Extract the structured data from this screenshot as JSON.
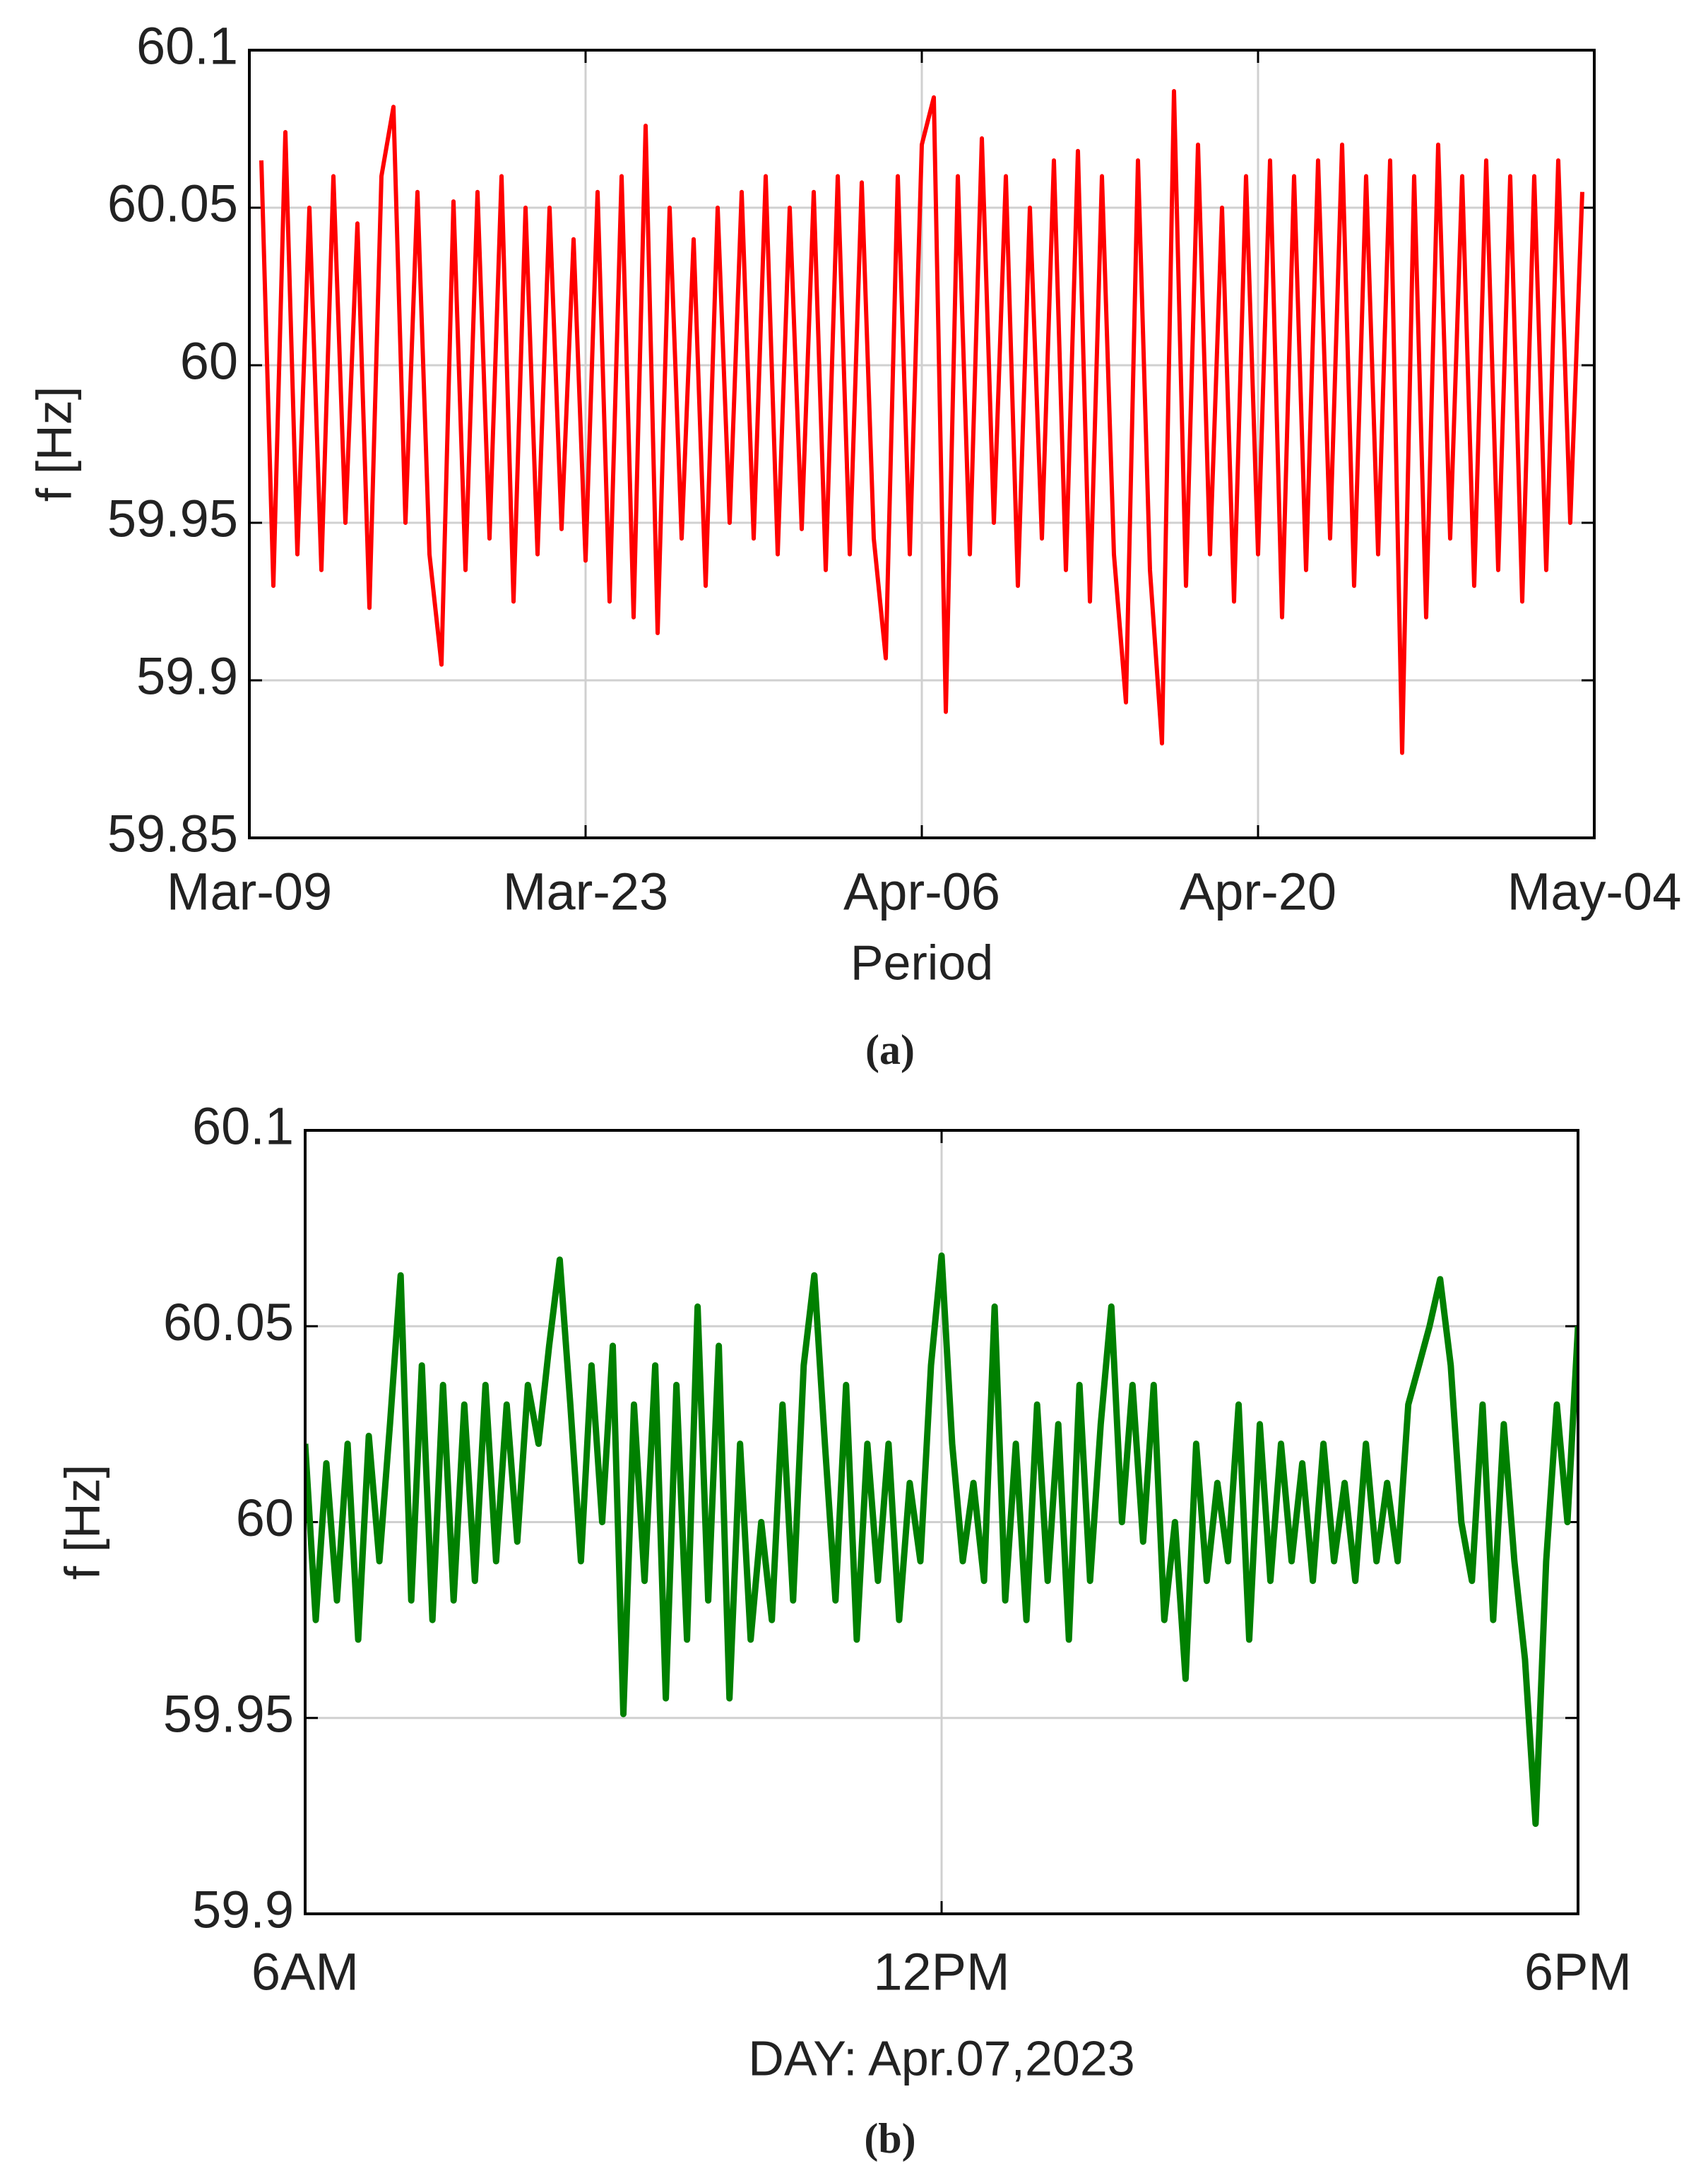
{
  "chart_data": [
    {
      "type": "line",
      "caption": "(a)",
      "ylabel": "f [Hz]",
      "xlabel": "Period",
      "xlim": [
        0,
        56
      ],
      "xticks": [
        {
          "value": 0,
          "label": "Mar-09"
        },
        {
          "value": 14,
          "label": "Mar-23"
        },
        {
          "value": 28,
          "label": "Apr-06"
        },
        {
          "value": 42,
          "label": "Apr-20"
        },
        {
          "value": 56,
          "label": "May-04"
        }
      ],
      "ylim": [
        59.85,
        60.1
      ],
      "yticks": [
        59.85,
        59.9,
        59.95,
        60,
        60.05,
        60.1
      ],
      "grid": true,
      "x": [
        0.5,
        1,
        1.5,
        2,
        2.5,
        3,
        3.5,
        4,
        4.5,
        5,
        5.5,
        6,
        6.5,
        7,
        7.5,
        8,
        8.5,
        9,
        9.5,
        10,
        10.5,
        11,
        11.5,
        12,
        12.5,
        13,
        13.5,
        14,
        14.5,
        15,
        15.5,
        16,
        16.5,
        17,
        17.5,
        18,
        18.5,
        19,
        19.5,
        20,
        20.5,
        21,
        21.5,
        22,
        22.5,
        23,
        23.5,
        24,
        24.5,
        25,
        25.5,
        26,
        26.5,
        27,
        27.5,
        28,
        28.5,
        29,
        29.5,
        30,
        30.5,
        31,
        31.5,
        32,
        32.5,
        33,
        33.5,
        34,
        34.5,
        35,
        35.5,
        36,
        36.5,
        37,
        37.5,
        38,
        38.5,
        39,
        39.5,
        40,
        40.5,
        41,
        41.5,
        42,
        42.5,
        43,
        43.5,
        44,
        44.5,
        45,
        45.5,
        46,
        46.5,
        47,
        47.5,
        48,
        48.5,
        49,
        49.5,
        50,
        50.5,
        51,
        51.5,
        52,
        52.5,
        53,
        53.5,
        54,
        54.5,
        55,
        55.5
      ],
      "series": [
        {
          "color": "#ff0000",
          "values": [
            60.065,
            59.93,
            60.074,
            59.94,
            60.05,
            59.935,
            60.06,
            59.95,
            60.045,
            59.923,
            60.06,
            60.082,
            59.95,
            60.055,
            59.94,
            59.905,
            60.052,
            59.935,
            60.055,
            59.945,
            60.06,
            59.925,
            60.05,
            59.94,
            60.05,
            59.948,
            60.04,
            59.938,
            60.055,
            59.925,
            60.06,
            59.92,
            60.076,
            59.915,
            60.05,
            59.945,
            60.04,
            59.93,
            60.05,
            59.95,
            60.055,
            59.945,
            60.06,
            59.94,
            60.05,
            59.948,
            60.055,
            59.935,
            60.06,
            59.94,
            60.058,
            59.945,
            59.907,
            60.06,
            59.94,
            60.07,
            60.085,
            59.89,
            60.06,
            59.94,
            60.072,
            59.95,
            60.06,
            59.93,
            60.05,
            59.945,
            60.065,
            59.935,
            60.068,
            59.925,
            60.06,
            59.94,
            59.893,
            60.065,
            59.935,
            59.88,
            60.087,
            59.93,
            60.07,
            59.94,
            60.05,
            59.925,
            60.06,
            59.94,
            60.065,
            59.92,
            60.06,
            59.935,
            60.065,
            59.945,
            60.07,
            59.93,
            60.06,
            59.94,
            60.065,
            59.877,
            60.06,
            59.92,
            60.07,
            59.945,
            60.06,
            59.93,
            60.065,
            59.935,
            60.06,
            59.925,
            60.06,
            59.935,
            60.065,
            59.95,
            60.055
          ]
        }
      ]
    },
    {
      "type": "line",
      "caption": "(b)",
      "ylabel": "f [Hz]",
      "xlabel": "DAY: Apr.07,2023",
      "xlim": [
        6,
        18
      ],
      "xticks": [
        {
          "value": 6,
          "label": "6AM"
        },
        {
          "value": 12,
          "label": "12PM"
        },
        {
          "value": 18,
          "label": "6PM"
        }
      ],
      "ylim": [
        59.9,
        60.1
      ],
      "yticks": [
        59.9,
        59.95,
        60,
        60.05,
        60.1
      ],
      "grid": true,
      "x": [
        6,
        6.1,
        6.2,
        6.3,
        6.4,
        6.5,
        6.6,
        6.7,
        6.8,
        6.9,
        7,
        7.1,
        7.2,
        7.3,
        7.4,
        7.5,
        7.6,
        7.7,
        7.8,
        7.9,
        8,
        8.1,
        8.2,
        8.3,
        8.4,
        8.5,
        8.6,
        8.7,
        8.8,
        8.9,
        9,
        9.1,
        9.2,
        9.3,
        9.4,
        9.5,
        9.6,
        9.7,
        9.8,
        9.9,
        10,
        10.1,
        10.2,
        10.3,
        10.4,
        10.5,
        10.6,
        10.7,
        10.8,
        10.9,
        11,
        11.1,
        11.2,
        11.3,
        11.4,
        11.5,
        11.6,
        11.7,
        11.8,
        11.9,
        12,
        12.1,
        12.2,
        12.3,
        12.4,
        12.5,
        12.6,
        12.7,
        12.8,
        12.9,
        13,
        13.1,
        13.2,
        13.3,
        13.4,
        13.5,
        13.6,
        13.7,
        13.8,
        13.9,
        14,
        14.1,
        14.2,
        14.3,
        14.4,
        14.5,
        14.6,
        14.7,
        14.8,
        14.9,
        15,
        15.1,
        15.2,
        15.3,
        15.4,
        15.5,
        15.6,
        15.7,
        15.8,
        15.9,
        16,
        16.1,
        16.2,
        16.3,
        16.4,
        16.5,
        16.6,
        16.7,
        16.8,
        16.9,
        17,
        17.1,
        17.2,
        17.3,
        17.4,
        17.5,
        17.6,
        17.7,
        17.8,
        17.9,
        18
      ],
      "series": [
        {
          "color": "#008000",
          "values": [
            60.02,
            59.975,
            60.015,
            59.98,
            60.02,
            59.97,
            60.022,
            59.99,
            60.025,
            60.063,
            59.98,
            60.04,
            59.975,
            60.035,
            59.98,
            60.03,
            59.985,
            60.035,
            59.99,
            60.03,
            59.995,
            60.035,
            60.02,
            60.045,
            60.067,
            60.03,
            59.99,
            60.04,
            60.0,
            60.045,
            59.951,
            60.03,
            59.985,
            60.04,
            59.955,
            60.035,
            59.97,
            60.055,
            59.98,
            60.045,
            59.955,
            60.02,
            59.97,
            60.0,
            59.975,
            60.03,
            59.98,
            60.04,
            60.063,
            60.02,
            59.98,
            60.035,
            59.97,
            60.02,
            59.985,
            60.02,
            59.975,
            60.01,
            59.99,
            60.04,
            60.068,
            60.02,
            59.99,
            60.01,
            59.985,
            60.055,
            59.98,
            60.02,
            59.975,
            60.03,
            59.985,
            60.025,
            59.97,
            60.035,
            59.985,
            60.025,
            60.055,
            60.0,
            60.035,
            59.995,
            60.035,
            59.975,
            60.0,
            59.96,
            60.02,
            59.985,
            60.01,
            59.99,
            60.03,
            59.97,
            60.025,
            59.985,
            60.02,
            59.99,
            60.015,
            59.985,
            60.02,
            59.99,
            60.01,
            59.985,
            60.02,
            59.99,
            60.01,
            59.99,
            60.03,
            60.04,
            60.05,
            60.062,
            60.04,
            60.0,
            59.985,
            60.03,
            59.975,
            60.025,
            59.99,
            59.965,
            59.923,
            59.99,
            60.03,
            60.0,
            60.05
          ]
        }
      ]
    }
  ]
}
